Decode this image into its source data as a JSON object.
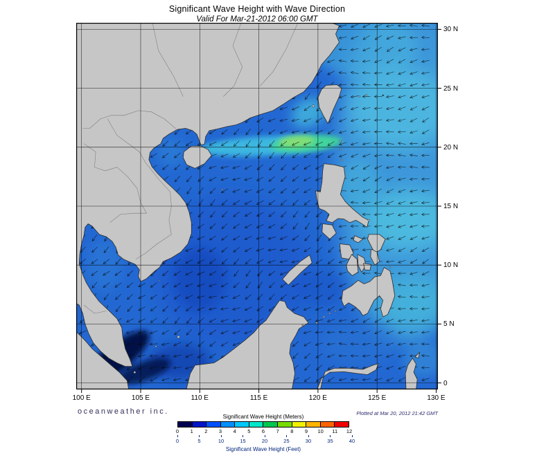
{
  "header": {
    "title": "Significant Wave Height with Wave Direction",
    "subtitle": "Valid For Mar-21-2012 06:00 GMT"
  },
  "axis": {
    "lon_values": [
      100,
      105,
      110,
      115,
      120,
      125,
      130
    ],
    "lon_labels": [
      "100 E",
      "105 E",
      "110 E",
      "115 E",
      "120 E",
      "125 E",
      "130 E"
    ],
    "lat_values": [
      30,
      25,
      20,
      15,
      10,
      5,
      0
    ],
    "lat_labels": [
      "30 N",
      "25 N",
      "20 N",
      "15 N",
      "10 N",
      "5 N",
      "0"
    ]
  },
  "colorbar": {
    "meters_label": "Significant Wave Height (Meters)",
    "feet_label": "Significant Wave Height (Feet)",
    "meter_ticks": [
      0,
      1,
      2,
      3,
      4,
      5,
      6,
      7,
      8,
      9,
      10,
      11,
      12
    ],
    "feet_ticks": [
      0,
      5,
      10,
      15,
      20,
      25,
      30,
      35,
      40
    ],
    "segment_colors": [
      "#000050",
      "#0014c8",
      "#0050ff",
      "#0090ff",
      "#00c8ff",
      "#00e6c8",
      "#00c850",
      "#78dc00",
      "#f0f000",
      "#ffb400",
      "#ff6400",
      "#f00000"
    ]
  },
  "footer": {
    "branding": "oceanweather inc.",
    "plotted": "Plotted at Mar 20, 2012 21:42 GMT"
  },
  "map": {
    "ocean_base_color": "#2368d2",
    "land_color": "#c6c6c6"
  },
  "chart_data": {
    "type": "heatmap",
    "title": "Significant Wave Height with Wave Direction",
    "valid_time": "Mar-21-2012 06:00 GMT",
    "x_range_deg_east": [
      100,
      130
    ],
    "y_range_deg_north": [
      0,
      30
    ],
    "scale_meters": [
      0,
      1,
      2,
      3,
      4,
      5,
      6,
      7,
      8,
      9,
      10,
      11,
      12
    ],
    "scale_feet": [
      0,
      5,
      10,
      15,
      20,
      25,
      30,
      35,
      40
    ],
    "legend_position": "bottom"
  }
}
